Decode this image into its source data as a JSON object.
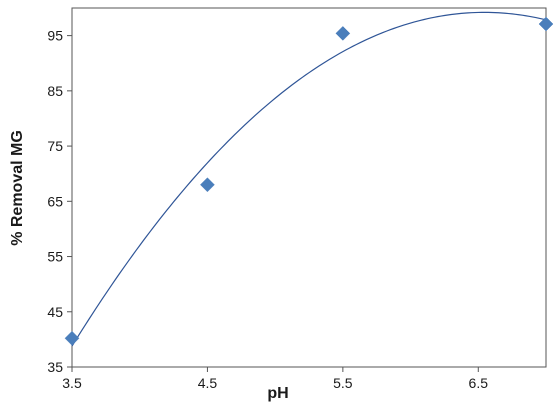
{
  "chart_data": {
    "type": "scatter",
    "xlabel": "pH",
    "ylabel": "% Removal MG",
    "xlim": [
      3.5,
      7.0
    ],
    "ylim": [
      35,
      100
    ],
    "x_ticks": [
      "3.5",
      "4.5",
      "5.5",
      "6.5"
    ],
    "y_ticks": [
      "35",
      "45",
      "55",
      "65",
      "75",
      "85",
      "95"
    ],
    "grid": false,
    "legend": "none",
    "series": [
      {
        "marker": "diamond",
        "color": "#4a7ebb",
        "points": [
          {
            "x": 3.5,
            "y": 40.2
          },
          {
            "x": 4.5,
            "y": 68.0
          },
          {
            "x": 5.5,
            "y": 95.4
          },
          {
            "x": 7.0,
            "y": 97.1
          }
        ]
      }
    ],
    "trendline": {
      "type": "polynomial",
      "order": 2,
      "color": "#2f5597"
    }
  }
}
